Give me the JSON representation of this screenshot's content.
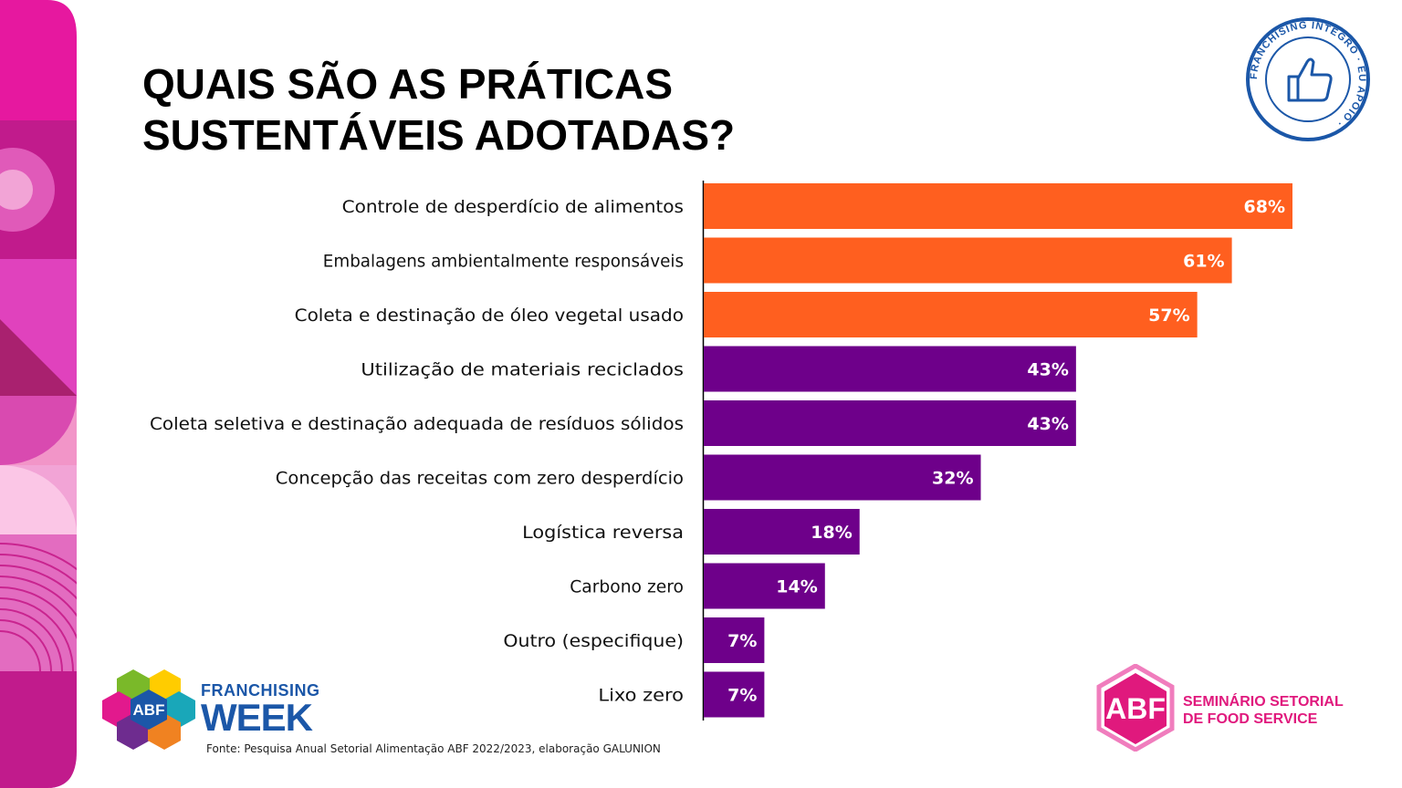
{
  "title_lines": [
    "QUAIS SÃO AS PRÁTICAS",
    "SUSTENTÁVEIS ADOTADAS?"
  ],
  "stamp_text": "FRANCHISING ÍNTEGRO · EU APOIO",
  "chart_data": {
    "type": "bar",
    "orientation": "horizontal",
    "categories": [
      "Controle de desperdício de alimentos",
      "Embalagens ambientalmente responsáveis",
      "Coleta e destinação de óleo vegetal usado",
      "Utilização de materiais reciclados",
      "Coleta seletiva e destinação adequada de resíduos sólidos",
      "Concepção das receitas com zero desperdício",
      "Logística reversa",
      "Carbono zero",
      "Outro (especifique)",
      "Lixo zero"
    ],
    "values": [
      68,
      61,
      57,
      43,
      43,
      32,
      18,
      14,
      7,
      7
    ],
    "value_labels": [
      "68%",
      "61%",
      "57%",
      "43%",
      "43%",
      "32%",
      "18%",
      "14%",
      "7%",
      "7%"
    ],
    "bar_colors": [
      "#ff5f1f",
      "#ff5f1f",
      "#ff5f1f",
      "#6e008a",
      "#6e008a",
      "#6e008a",
      "#6e008a",
      "#6e008a",
      "#6e008a",
      "#6e008a"
    ],
    "xlim": [
      0,
      68
    ],
    "grid": false,
    "legend": "none"
  },
  "colors": {
    "orange": "#ff5f1f",
    "purple": "#6e008a",
    "brand_blue": "#1b57a8",
    "brand_pink": "#e0197d"
  },
  "footer": {
    "fw_logo_abf": "ABF",
    "fw_line1": "FRANCHISING",
    "fw_line2": "WEEK",
    "source": "Fonte: Pesquisa Anual Setorial Alimentação ABF 2022/2023, elaboração GALUNION",
    "abf_logo_text": "ABF",
    "seminar_line1": "SEMINÁRIO SETORIAL",
    "seminar_line2": "DE FOOD SERVICE"
  }
}
